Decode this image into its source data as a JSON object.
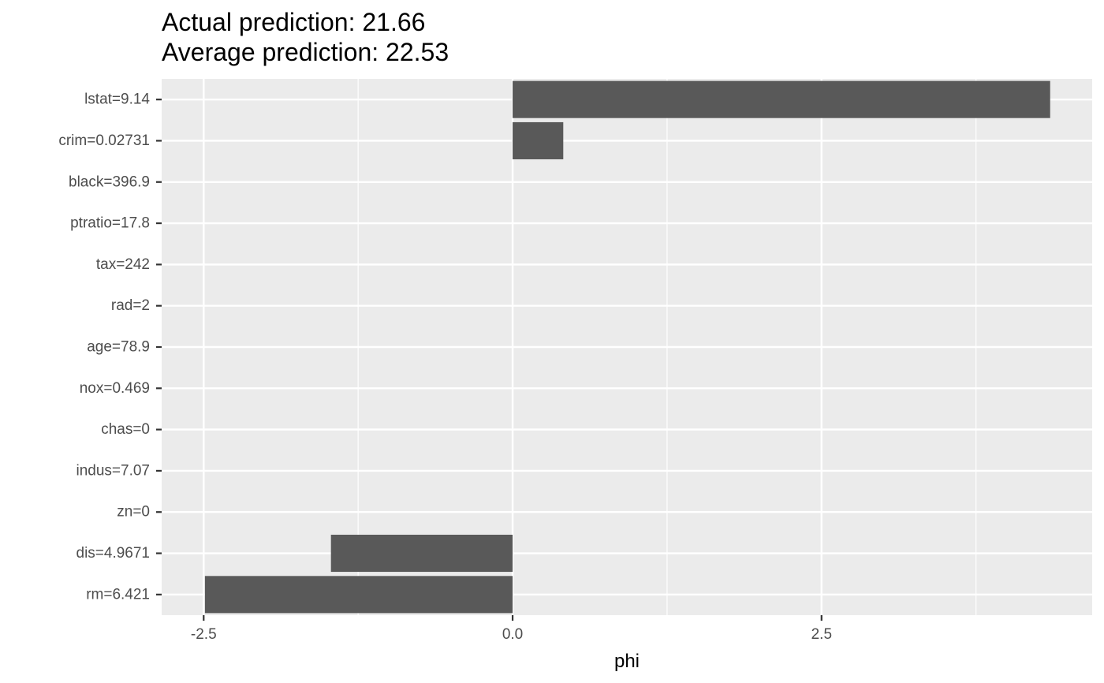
{
  "title_lines": [
    "Actual prediction: 21.66",
    "Average prediction: 22.53"
  ],
  "chart_data": {
    "type": "bar",
    "orientation": "horizontal",
    "title": "Actual prediction: 21.66\nAverage prediction: 22.53",
    "xlabel": "phi",
    "ylabel": "",
    "categories": [
      "lstat=9.14",
      "crim=0.02731",
      "black=396.9",
      "ptratio=17.8",
      "tax=242",
      "rad=2",
      "age=78.9",
      "nox=0.469",
      "chas=0",
      "indus=7.07",
      "zn=0",
      "dis=4.9671",
      "rm=6.421"
    ],
    "values": [
      4.35,
      0.41,
      0,
      0,
      0,
      0,
      0,
      0,
      0,
      0,
      0,
      -1.47,
      -2.49
    ],
    "xlim": [
      -2.84,
      4.69
    ],
    "xticks": [
      -2.5,
      0.0,
      2.5
    ],
    "xtick_labels": [
      "-2.5",
      "0.0",
      "2.5"
    ],
    "grid": true,
    "bar_color": "#595959",
    "panel_background": "#ebebeb",
    "grid_color": "#ffffff"
  }
}
